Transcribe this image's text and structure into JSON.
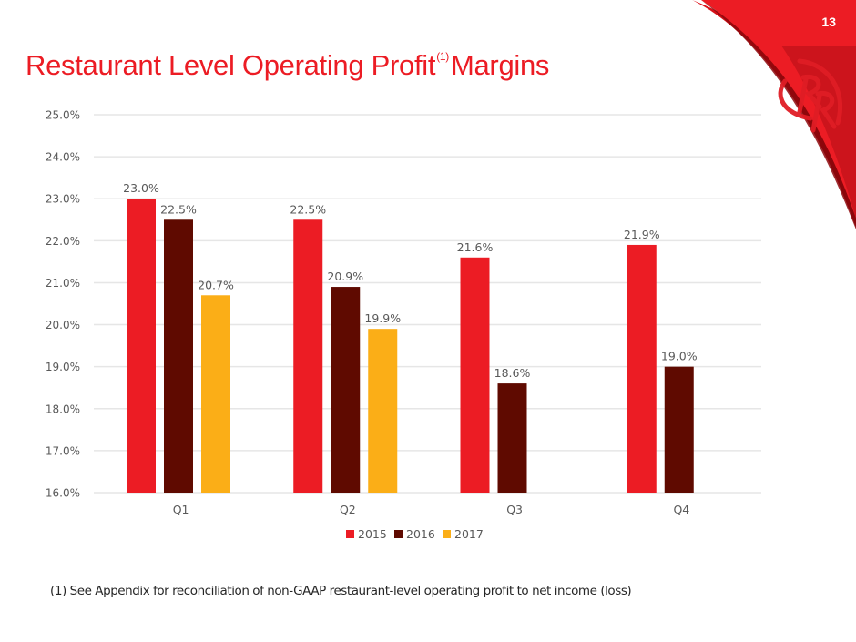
{
  "slide": {
    "page_number": "13",
    "title_main": "Restaurant Level Operating Profit",
    "title_superscript": "(1)",
    "title_suffix": "Margins",
    "footnote": "(1) See Appendix for reconciliation of non-GAAP restaurant-level operating profit to net income (loss)",
    "logo": "rr-logo-icon",
    "colors": {
      "brand_red": "#ec1c24",
      "swoosh_dark": "#c4121a",
      "series_2015": "#ec1c24",
      "series_2016": "#5f0a00",
      "series_2017": "#fbae17",
      "grid": "#e6e6e6",
      "text": "#595959"
    }
  },
  "chart_data": {
    "type": "bar",
    "title": "Restaurant Level Operating Profit Margins",
    "xlabel": "",
    "ylabel": "",
    "categories": [
      "Q1",
      "Q2",
      "Q3",
      "Q4"
    ],
    "series": [
      {
        "name": "2015",
        "color": "#ec1c24",
        "values": [
          23.0,
          22.5,
          21.6,
          21.9
        ],
        "labels": [
          "23.0%",
          "22.5%",
          "21.6%",
          "21.9%"
        ]
      },
      {
        "name": "2016",
        "color": "#5f0a00",
        "values": [
          22.5,
          20.9,
          18.6,
          19.0
        ],
        "labels": [
          "22.5%",
          "20.9%",
          "18.6%",
          "19.0%"
        ]
      },
      {
        "name": "2017",
        "color": "#fbae17",
        "values": [
          20.7,
          19.9,
          null,
          null
        ],
        "labels": [
          "20.7%",
          "19.9%",
          null,
          null
        ]
      }
    ],
    "ylim": [
      16.0,
      25.0
    ],
    "yticks": [
      16.0,
      17.0,
      18.0,
      19.0,
      20.0,
      21.0,
      22.0,
      23.0,
      24.0,
      25.0
    ],
    "ytick_labels": [
      "16.0%",
      "17.0%",
      "18.0%",
      "19.0%",
      "20.0%",
      "21.0%",
      "22.0%",
      "23.0%",
      "24.0%",
      "25.0%"
    ],
    "grid": true,
    "legend": {
      "position": "bottom",
      "entries": [
        "2015",
        "2016",
        "2017"
      ]
    }
  }
}
